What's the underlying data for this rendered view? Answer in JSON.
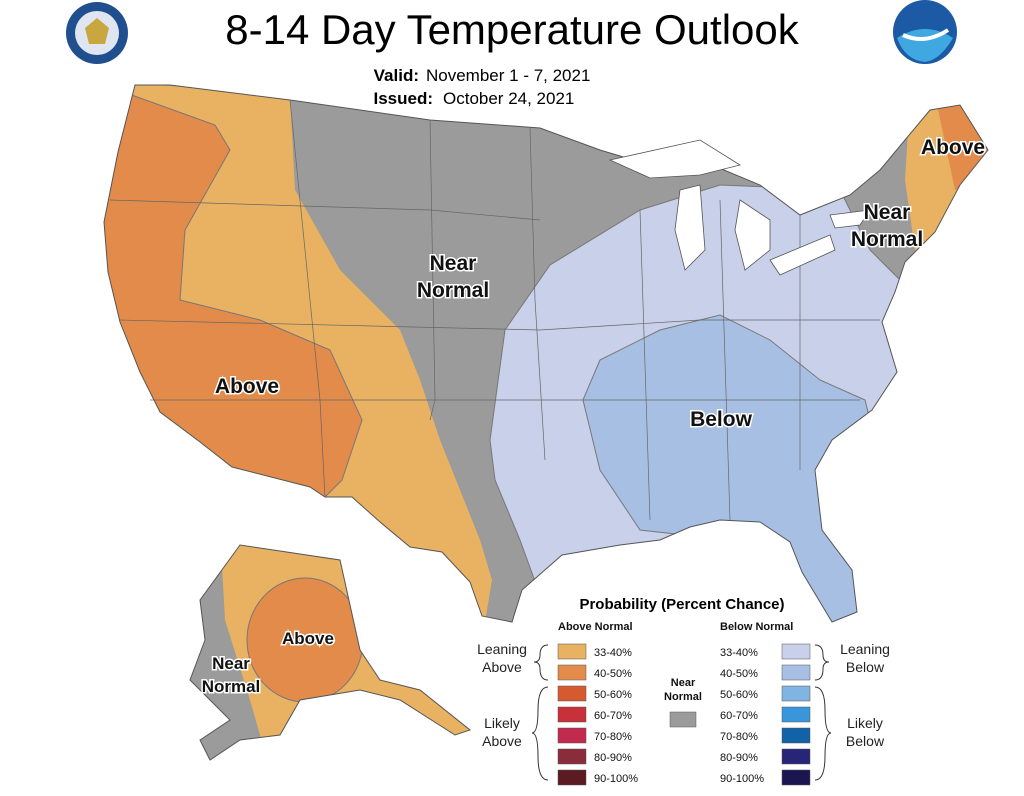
{
  "header": {
    "title": "8-14 Day Temperature Outlook",
    "valid_label": "Valid:",
    "valid": "November 1 - 7, 2021",
    "issued_label": "Issued:",
    "issued": "October 24, 2021"
  },
  "map_labels": {
    "west_above": "Above",
    "central_near": [
      "Near",
      "Normal"
    ],
    "southeast_below": "Below",
    "maine_above": "Above",
    "northeast_near": [
      "Near",
      "Normal"
    ],
    "alaska_above": "Above",
    "alaska_near": [
      "Near",
      "Normal"
    ]
  },
  "legend": {
    "title": "Probability (Percent Chance)",
    "above_heading": "Above Normal",
    "below_heading": "Below Normal",
    "near_heading": [
      "Near",
      "Normal"
    ],
    "near_color": "#9b9b9b",
    "leaning_above": [
      "Leaning",
      "Above"
    ],
    "likely_above": [
      "Likely",
      "Above"
    ],
    "leaning_below": [
      "Leaning",
      "Below"
    ],
    "likely_below": [
      "Likely",
      "Below"
    ],
    "above_classes": [
      {
        "range": "33-40%",
        "color": "#e8b262"
      },
      {
        "range": "40-50%",
        "color": "#e38b4a"
      },
      {
        "range": "50-60%",
        "color": "#d65a30"
      },
      {
        "range": "60-70%",
        "color": "#c8303a"
      },
      {
        "range": "70-80%",
        "color": "#c22a4e"
      },
      {
        "range": "80-90%",
        "color": "#8a2c3c"
      },
      {
        "range": "90-100%",
        "color": "#5a1c22"
      }
    ],
    "below_classes": [
      {
        "range": "33-40%",
        "color": "#c8d0ea"
      },
      {
        "range": "40-50%",
        "color": "#a8bfe4"
      },
      {
        "range": "50-60%",
        "color": "#80b4e2"
      },
      {
        "range": "60-70%",
        "color": "#3a96da"
      },
      {
        "range": "70-80%",
        "color": "#1262a8"
      },
      {
        "range": "80-90%",
        "color": "#282478"
      },
      {
        "range": "90-100%",
        "color": "#1c1650"
      }
    ]
  }
}
